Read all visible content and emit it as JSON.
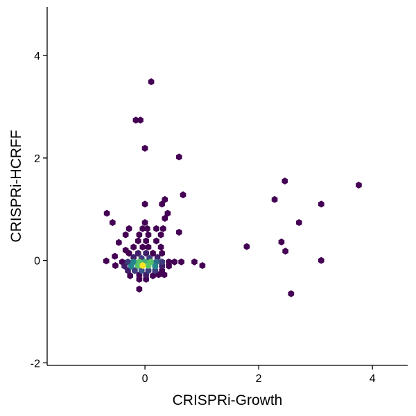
{
  "chart_data": {
    "type": "hexbin",
    "xlabel": "CRISPRi-Growth",
    "ylabel": "CRISPRi-HCRFF",
    "xlim": [
      -1.72,
      4.62
    ],
    "ylim": [
      -2.05,
      4.95
    ],
    "x_ticks": [
      0,
      2,
      4
    ],
    "x_tick_labels": [
      "0",
      "2",
      "4"
    ],
    "y_ticks": [
      -2,
      0,
      2,
      4
    ],
    "y_tick_labels": [
      "-2",
      "0",
      "2",
      "4"
    ],
    "grid": false,
    "legend": "none",
    "colormap": [
      "#440154",
      "#3b528b",
      "#21908c",
      "#5dc863",
      "#fde725"
    ],
    "bins": [
      {
        "x": 0.11,
        "y": 3.49,
        "count": 1
      },
      {
        "x": -0.16,
        "y": 2.74,
        "count": 1
      },
      {
        "x": -0.08,
        "y": 2.74,
        "count": 1
      },
      {
        "x": 0.0,
        "y": 2.19,
        "count": 1
      },
      {
        "x": 0.6,
        "y": 2.02,
        "count": 1
      },
      {
        "x": 2.46,
        "y": 1.55,
        "count": 1
      },
      {
        "x": 3.76,
        "y": 1.47,
        "count": 1
      },
      {
        "x": 0.67,
        "y": 1.28,
        "count": 1
      },
      {
        "x": 2.28,
        "y": 1.19,
        "count": 1
      },
      {
        "x": 0.35,
        "y": 1.19,
        "count": 1
      },
      {
        "x": 3.1,
        "y": 1.1,
        "count": 1
      },
      {
        "x": 0.0,
        "y": 1.1,
        "count": 1
      },
      {
        "x": 0.3,
        "y": 1.1,
        "count": 1
      },
      {
        "x": -0.67,
        "y": 0.92,
        "count": 1
      },
      {
        "x": 0.4,
        "y": 0.92,
        "count": 1
      },
      {
        "x": -0.57,
        "y": 0.74,
        "count": 1
      },
      {
        "x": 2.71,
        "y": 0.74,
        "count": 1
      },
      {
        "x": 0.0,
        "y": 0.74,
        "count": 1
      },
      {
        "x": 0.35,
        "y": 0.82,
        "count": 1
      },
      {
        "x": -0.28,
        "y": 0.62,
        "count": 1
      },
      {
        "x": -0.04,
        "y": 0.62,
        "count": 1
      },
      {
        "x": 0.04,
        "y": 0.62,
        "count": 1
      },
      {
        "x": 0.2,
        "y": 0.62,
        "count": 1
      },
      {
        "x": 0.32,
        "y": 0.62,
        "count": 1
      },
      {
        "x": 0.6,
        "y": 0.55,
        "count": 1
      },
      {
        "x": -0.34,
        "y": 0.5,
        "count": 1
      },
      {
        "x": -0.1,
        "y": 0.5,
        "count": 1
      },
      {
        "x": 0.06,
        "y": 0.5,
        "count": 1
      },
      {
        "x": 0.28,
        "y": 0.5,
        "count": 1
      },
      {
        "x": -0.12,
        "y": 0.38,
        "count": 1
      },
      {
        "x": 0.02,
        "y": 0.38,
        "count": 1
      },
      {
        "x": 0.2,
        "y": 0.38,
        "count": 1
      },
      {
        "x": -0.46,
        "y": 0.35,
        "count": 1
      },
      {
        "x": 2.4,
        "y": 0.36,
        "count": 1
      },
      {
        "x": 1.79,
        "y": 0.27,
        "count": 1
      },
      {
        "x": -0.2,
        "y": 0.26,
        "count": 1
      },
      {
        "x": -0.04,
        "y": 0.26,
        "count": 1
      },
      {
        "x": 0.06,
        "y": 0.26,
        "count": 1
      },
      {
        "x": 0.28,
        "y": 0.26,
        "count": 1
      },
      {
        "x": -0.34,
        "y": 0.2,
        "count": 1
      },
      {
        "x": 2.47,
        "y": 0.18,
        "count": 1
      },
      {
        "x": -0.28,
        "y": 0.14,
        "count": 1
      },
      {
        "x": -0.12,
        "y": 0.14,
        "count": 2
      },
      {
        "x": 0.02,
        "y": 0.14,
        "count": 2
      },
      {
        "x": 0.14,
        "y": 0.14,
        "count": 1
      },
      {
        "x": 0.3,
        "y": 0.14,
        "count": 1
      },
      {
        "x": -0.53,
        "y": 0.08,
        "count": 1
      },
      {
        "x": -0.2,
        "y": 0.06,
        "count": 2
      },
      {
        "x": -0.06,
        "y": 0.04,
        "count": 3
      },
      {
        "x": 0.08,
        "y": 0.04,
        "count": 3
      },
      {
        "x": 0.22,
        "y": 0.06,
        "count": 2
      },
      {
        "x": -0.68,
        "y": -0.01,
        "count": 1
      },
      {
        "x": -0.4,
        "y": -0.03,
        "count": 1
      },
      {
        "x": -0.3,
        "y": -0.03,
        "count": 3
      },
      {
        "x": -0.2,
        "y": -0.03,
        "count": 6
      },
      {
        "x": -0.1,
        "y": -0.03,
        "count": 9
      },
      {
        "x": 0.0,
        "y": -0.03,
        "count": 8
      },
      {
        "x": 0.1,
        "y": -0.03,
        "count": 9
      },
      {
        "x": 0.2,
        "y": -0.03,
        "count": 5
      },
      {
        "x": 0.3,
        "y": -0.03,
        "count": 3
      },
      {
        "x": 0.42,
        "y": -0.03,
        "count": 1
      },
      {
        "x": 0.52,
        "y": -0.03,
        "count": 1
      },
      {
        "x": 0.64,
        "y": -0.03,
        "count": 1
      },
      {
        "x": 0.87,
        "y": -0.03,
        "count": 1
      },
      {
        "x": 3.1,
        "y": 0.0,
        "count": 1
      },
      {
        "x": 1.01,
        "y": -0.1,
        "count": 1
      },
      {
        "x": -0.52,
        "y": -0.1,
        "count": 1
      },
      {
        "x": -0.36,
        "y": -0.11,
        "count": 2
      },
      {
        "x": -0.24,
        "y": -0.11,
        "count": 6
      },
      {
        "x": -0.12,
        "y": -0.1,
        "count": 9
      },
      {
        "x": -0.04,
        "y": -0.1,
        "count": 12
      },
      {
        "x": 0.06,
        "y": -0.1,
        "count": 9
      },
      {
        "x": 0.18,
        "y": -0.11,
        "count": 6
      },
      {
        "x": 0.3,
        "y": -0.11,
        "count": 2
      },
      {
        "x": 0.42,
        "y": -0.11,
        "count": 1
      },
      {
        "x": -0.3,
        "y": -0.2,
        "count": 2
      },
      {
        "x": -0.18,
        "y": -0.2,
        "count": 3
      },
      {
        "x": -0.06,
        "y": -0.2,
        "count": 4
      },
      {
        "x": 0.06,
        "y": -0.2,
        "count": 3
      },
      {
        "x": 0.18,
        "y": -0.2,
        "count": 3
      },
      {
        "x": 0.3,
        "y": -0.2,
        "count": 1
      },
      {
        "x": -0.26,
        "y": -0.3,
        "count": 1
      },
      {
        "x": -0.1,
        "y": -0.28,
        "count": 1
      },
      {
        "x": 0.02,
        "y": -0.28,
        "count": 2
      },
      {
        "x": 0.14,
        "y": -0.3,
        "count": 1
      },
      {
        "x": 0.24,
        "y": -0.28,
        "count": 1
      },
      {
        "x": 0.34,
        "y": -0.28,
        "count": 1
      },
      {
        "x": -0.1,
        "y": -0.37,
        "count": 1
      },
      {
        "x": 0.02,
        "y": -0.37,
        "count": 1
      },
      {
        "x": -0.1,
        "y": -0.56,
        "count": 1
      },
      {
        "x": 2.57,
        "y": -0.65,
        "count": 1
      }
    ]
  }
}
